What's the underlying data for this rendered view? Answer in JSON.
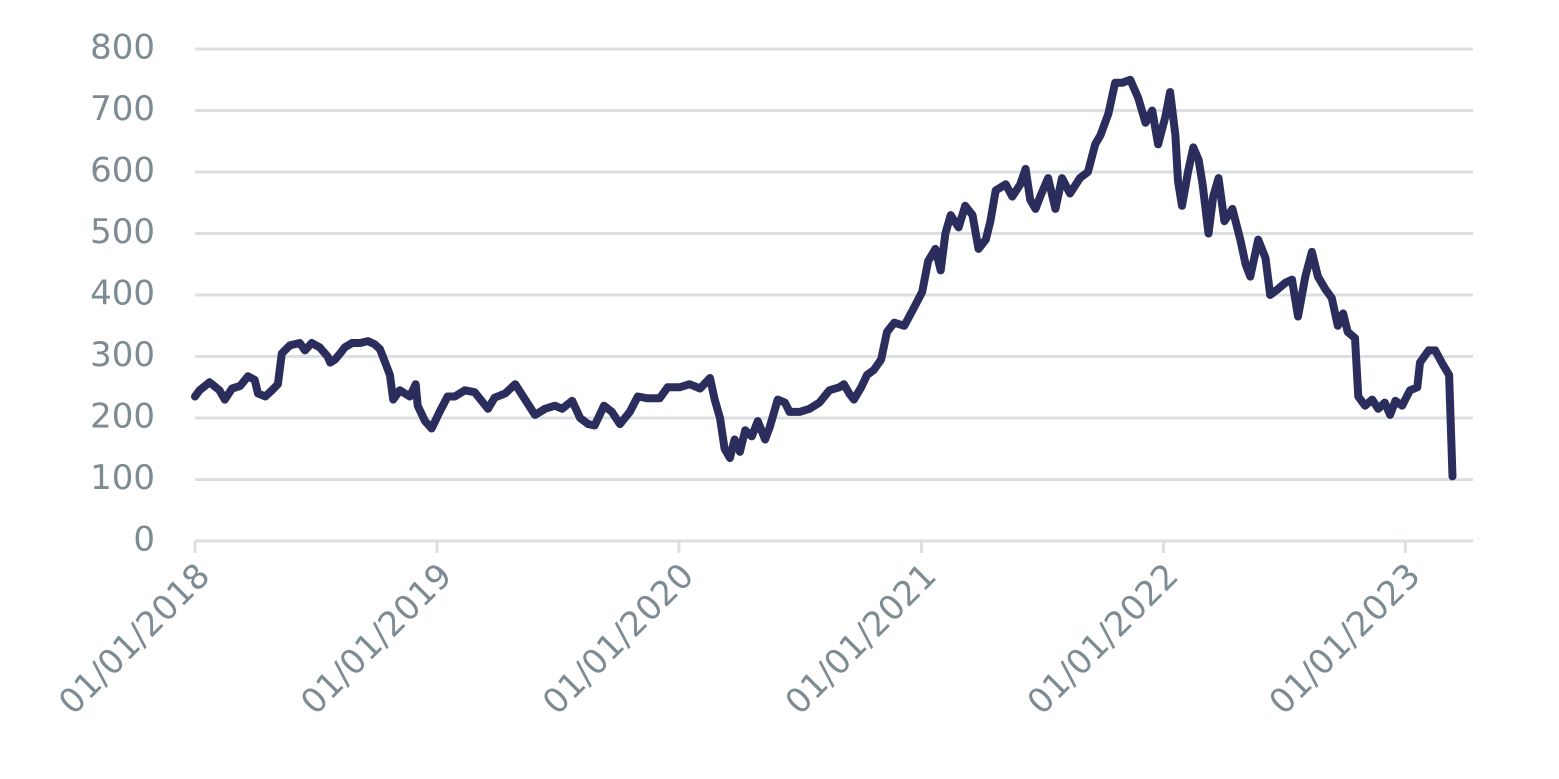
{
  "chart_data": {
    "type": "line",
    "color": "#2b2d5c",
    "grid": true,
    "x": [
      "01/01/2018",
      "08/01/2018",
      "23/01/2018",
      "07/02/2018",
      "15/02/2018",
      "26/02/2018",
      "10/03/2018",
      "22/03/2018",
      "01/04/2018",
      "06/04/2018",
      "17/04/2018",
      "27/04/2018",
      "06/05/2018",
      "12/05/2018",
      "24/05/2018",
      "08/06/2018",
      "16/06/2018",
      "26/06/2018",
      "08/07/2018",
      "20/07/2018",
      "24/07/2018",
      "31/07/2018",
      "08/08/2018",
      "15/08/2018",
      "26/08/2018",
      "07/09/2018",
      "19/09/2018",
      "29/09/2018",
      "07/10/2018",
      "15/10/2018",
      "22/10/2018",
      "27/10/2018",
      "06/11/2018",
      "21/11/2018",
      "30/11/2018",
      "03/12/2018",
      "14/12/2018",
      "24/12/2018",
      "05/01/2019",
      "17/01/2019",
      "28/01/2019",
      "12/02/2019",
      "27/02/2019",
      "19/03/2019",
      "29/03/2019",
      "14/04/2019",
      "29/04/2019",
      "14/05/2019",
      "29/05/2019",
      "13/06/2019",
      "28/06/2019",
      "09/07/2019",
      "24/07/2019",
      "05/08/2019",
      "17/08/2019",
      "27/08/2019",
      "10/09/2019",
      "22/09/2019",
      "04/10/2019",
      "19/10/2019",
      "31/10/2019",
      "15/11/2019",
      "03/12/2019",
      "15/12/2019",
      "02/01/2020",
      "17/01/2020",
      "02/02/2020",
      "17/02/2020",
      "24/02/2020",
      "03/03/2020",
      "10/03/2020",
      "18/03/2020",
      "25/03/2020",
      "02/04/2020",
      "10/04/2020",
      "20/04/2020",
      "29/04/2020",
      "10/05/2020",
      "17/05/2020",
      "29/05/2020",
      "09/06/2020",
      "16/06/2020",
      "01/07/2020",
      "16/07/2020",
      "31/07/2020",
      "15/08/2020",
      "30/08/2020",
      "06/09/2020",
      "14/09/2020",
      "21/09/2020",
      "02/10/2020",
      "11/10/2020",
      "21/10/2020",
      "01/11/2020",
      "10/11/2020",
      "21/11/2020",
      "06/12/2020",
      "21/12/2020",
      "02/01/2021",
      "11/01/2021",
      "22/01/2021",
      "30/01/2021",
      "06/02/2021",
      "14/02/2021",
      "26/02/2021",
      "08/03/2021",
      "19/03/2021",
      "28/03/2021",
      "08/04/2021",
      "15/04/2021",
      "23/04/2021",
      "08/05/2021",
      "18/05/2021",
      "30/05/2021",
      "07/06/2021",
      "14/06/2021",
      "22/06/2021",
      "29/06/2021",
      "11/07/2021",
      "22/07/2021",
      "01/08/2021",
      "13/08/2021",
      "28/08/2021",
      "09/09/2021",
      "20/09/2021",
      "28/09/2021",
      "10/10/2021",
      "20/10/2021",
      "31/10/2021",
      "12/11/2021",
      "24/11/2021",
      "05/12/2021",
      "15/12/2021",
      "24/12/2021",
      "04/01/2022",
      "11/01/2022",
      "19/01/2022",
      "23/01/2022",
      "29/01/2022",
      "07/02/2022",
      "15/02/2022",
      "23/02/2022",
      "01/03/2022",
      "10/03/2022",
      "17/03/2022",
      "25/03/2022",
      "03/04/2022",
      "15/04/2022",
      "27/04/2022",
      "05/05/2022",
      "12/05/2022",
      "24/05/2022",
      "04/06/2022",
      "11/06/2022",
      "23/06/2022",
      "04/07/2022",
      "14/07/2022",
      "23/07/2022",
      "03/08/2022",
      "13/08/2022",
      "22/08/2022",
      "02/09/2022",
      "12/09/2022",
      "21/09/2022",
      "29/09/2022",
      "06/10/2022",
      "17/10/2022",
      "22/10/2022",
      "01/11/2022",
      "12/11/2022",
      "21/11/2022",
      "01/12/2022",
      "09/12/2022",
      "17/12/2022",
      "27/12/2022",
      "08/01/2023",
      "19/01/2023",
      "23/01/2023",
      "05/02/2023",
      "15/02/2023",
      "26/02/2023",
      "08/03/2023",
      "13/03/2023"
    ],
    "values": [
      235,
      245,
      258,
      245,
      230,
      248,
      252,
      268,
      262,
      240,
      235,
      245,
      255,
      305,
      318,
      322,
      310,
      322,
      315,
      300,
      290,
      295,
      305,
      315,
      322,
      322,
      325,
      320,
      312,
      290,
      270,
      230,
      245,
      235,
      255,
      220,
      195,
      183,
      210,
      235,
      235,
      245,
      242,
      215,
      233,
      240,
      255,
      230,
      205,
      215,
      220,
      215,
      228,
      200,
      190,
      188,
      220,
      210,
      190,
      210,
      235,
      232,
      232,
      250,
      250,
      255,
      248,
      265,
      230,
      200,
      150,
      135,
      165,
      145,
      180,
      170,
      195,
      165,
      185,
      230,
      225,
      210,
      210,
      215,
      225,
      245,
      250,
      255,
      240,
      230,
      250,
      270,
      278,
      295,
      340,
      355,
      350,
      380,
      405,
      455,
      475,
      440,
      500,
      530,
      510,
      545,
      530,
      475,
      490,
      520,
      570,
      580,
      560,
      580,
      605,
      555,
      540,
      560,
      590,
      540,
      590,
      565,
      590,
      600,
      645,
      660,
      695,
      745,
      745,
      750,
      720,
      680,
      700,
      645,
      690,
      730,
      660,
      585,
      545,
      600,
      640,
      620,
      580,
      500,
      560,
      590,
      520,
      540,
      490,
      450,
      430,
      490,
      460,
      400,
      410,
      420,
      425,
      365,
      430,
      470,
      430,
      410,
      395,
      350,
      370,
      340,
      330,
      235,
      220,
      230,
      215,
      225,
      205,
      228,
      220,
      245,
      250,
      290,
      310,
      310,
      288,
      270,
      105
    ],
    "xlim": [
      "01/01/2018",
      "13/04/2023"
    ],
    "xticks": [
      "01/01/2018",
      "01/01/2019",
      "01/01/2020",
      "01/01/2021",
      "01/01/2022",
      "01/01/2023"
    ],
    "ylim": [
      0,
      800
    ],
    "yticks": [
      0,
      100,
      200,
      300,
      400,
      500,
      600,
      700,
      800
    ]
  }
}
